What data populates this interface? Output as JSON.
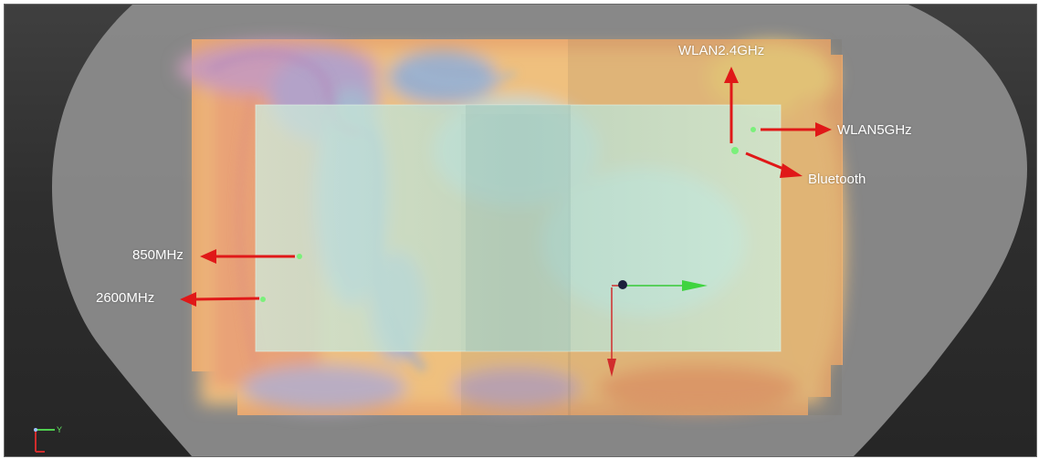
{
  "viewer": {
    "background_color": "#2e2e2e",
    "device_outline_color": "#8c8c8c",
    "pcb_color": "#cdeedd",
    "arrow_color": "#e01818"
  },
  "antennas": {
    "wlan24": "WLAN2.4GHz",
    "wlan5": "WLAN5GHz",
    "bluetooth": "Bluetooth",
    "lte850": "850MHz",
    "lte2600": "2600MHz"
  },
  "axes": {
    "corner_triad_y_label": "Y"
  }
}
